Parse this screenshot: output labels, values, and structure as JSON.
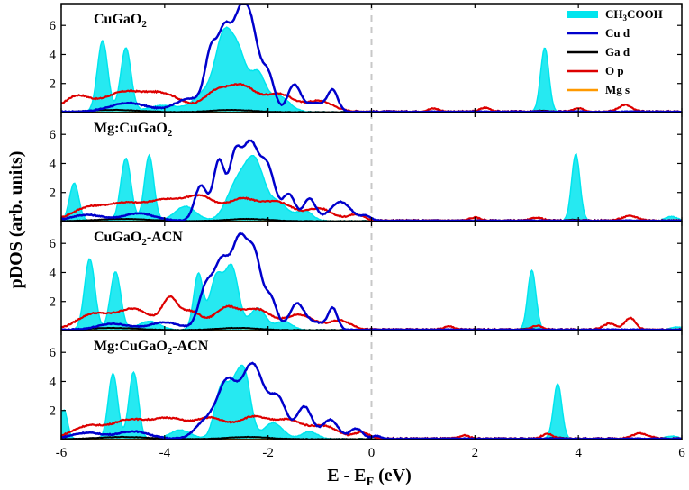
{
  "chart_data": {
    "type": "area",
    "xlabel_main": "E - E",
    "xlabel_sub": "F",
    "xlabel_unit": " (eV)",
    "ylabel": "pDOS (arb. units)",
    "xlim": [
      -6,
      6
    ],
    "ylim": [
      0,
      7.5
    ],
    "x_ticks": [
      -6,
      -4,
      -2,
      0,
      2,
      4,
      6
    ],
    "x_tick_labels": [
      "-6",
      "-4",
      "-2",
      "0",
      "2",
      "4",
      "6"
    ],
    "y_ticks": [
      2,
      4,
      6
    ],
    "y_tick_labels": [
      "2",
      "4",
      "6"
    ],
    "fermi_level": 0,
    "legend": {
      "location": "top-right",
      "entries": [
        {
          "key": "ch3cooh",
          "label_main": "CH",
          "label_sub": "3",
          "label_rest": "COOH",
          "color": "#00E5EE",
          "style": "fill"
        },
        {
          "key": "cud",
          "label_main": "Cu d",
          "label_sub": "",
          "label_rest": "",
          "color": "#0000CC",
          "style": "line"
        },
        {
          "key": "gad",
          "label_main": "Ga d",
          "label_sub": "",
          "label_rest": "",
          "color": "#000000",
          "style": "line"
        },
        {
          "key": "op",
          "label_main": "O p",
          "label_sub": "",
          "label_rest": "",
          "color": "#DD0000",
          "style": "line"
        },
        {
          "key": "mgs",
          "label_main": "Mg s",
          "label_sub": "",
          "label_rest": "",
          "color": "#FF9900",
          "style": "line"
        }
      ]
    },
    "panels": [
      {
        "title_main": "CuGaO",
        "title_sub": "2",
        "title_rest": "",
        "ch3cooh_peaks": [
          [
            -5.2,
            4.9,
            0.1
          ],
          [
            -4.75,
            4.4,
            0.1
          ],
          [
            -4.0,
            0.45,
            0.3
          ],
          [
            -3.25,
            1.2,
            0.2
          ],
          [
            -2.85,
            5.1,
            0.17
          ],
          [
            -2.55,
            3.3,
            0.15
          ],
          [
            -2.2,
            2.5,
            0.14
          ],
          [
            -1.8,
            1.1,
            0.2
          ],
          [
            3.35,
            4.4,
            0.08
          ]
        ],
        "cud_peaks": [
          [
            -4.7,
            0.6,
            0.35
          ],
          [
            -3.5,
            0.9,
            0.3
          ],
          [
            -3.1,
            3.8,
            0.12
          ],
          [
            -2.85,
            4.5,
            0.12
          ],
          [
            -2.55,
            6.2,
            0.16
          ],
          [
            -2.3,
            4.3,
            0.14
          ],
          [
            -2.0,
            2.5,
            0.12
          ],
          [
            -1.5,
            1.8,
            0.12
          ],
          [
            -0.75,
            1.4,
            0.1
          ],
          [
            -1.1,
            0.6,
            0.2
          ]
        ],
        "op_peaks": [
          [
            -5.7,
            1.0,
            0.25
          ],
          [
            -4.8,
            1.3,
            0.4
          ],
          [
            -4.0,
            1.1,
            0.35
          ],
          [
            -3.0,
            1.3,
            0.25
          ],
          [
            -2.5,
            1.6,
            0.25
          ],
          [
            -1.8,
            1.2,
            0.3
          ],
          [
            -1.0,
            0.7,
            0.25
          ],
          [
            1.2,
            0.2,
            0.1
          ],
          [
            2.2,
            0.25,
            0.1
          ],
          [
            4.0,
            0.2,
            0.1
          ],
          [
            4.9,
            0.45,
            0.12
          ]
        ],
        "gad_peaks": [
          [
            -5.0,
            0.15,
            0.5
          ],
          [
            -2.7,
            0.15,
            0.4
          ],
          [
            3.3,
            0.1,
            0.15
          ]
        ]
      },
      {
        "title_main": "Mg:CuGaO",
        "title_sub": "2",
        "title_rest": "",
        "ch3cooh_peaks": [
          [
            -5.75,
            2.6,
            0.09
          ],
          [
            -4.75,
            4.3,
            0.1
          ],
          [
            -4.3,
            4.5,
            0.09
          ],
          [
            -3.6,
            1.0,
            0.2
          ],
          [
            -2.6,
            2.5,
            0.2
          ],
          [
            -2.25,
            3.8,
            0.18
          ],
          [
            -1.8,
            1.2,
            0.18
          ],
          [
            -1.3,
            0.7,
            0.15
          ],
          [
            3.95,
            4.6,
            0.08
          ],
          [
            5.8,
            0.3,
            0.12
          ]
        ],
        "cud_peaks": [
          [
            -5.5,
            0.4,
            0.3
          ],
          [
            -4.5,
            0.5,
            0.3
          ],
          [
            -3.3,
            2.4,
            0.12
          ],
          [
            -2.95,
            4.1,
            0.11
          ],
          [
            -2.65,
            3.7,
            0.11
          ],
          [
            -2.35,
            5.3,
            0.17
          ],
          [
            -2.0,
            3.3,
            0.14
          ],
          [
            -1.6,
            1.8,
            0.12
          ],
          [
            -1.2,
            1.5,
            0.12
          ],
          [
            -0.6,
            1.3,
            0.2
          ],
          [
            -0.1,
            0.3,
            0.1
          ]
        ],
        "op_peaks": [
          [
            -5.5,
            0.8,
            0.3
          ],
          [
            -4.8,
            1.1,
            0.35
          ],
          [
            -4.0,
            1.3,
            0.35
          ],
          [
            -3.3,
            1.5,
            0.3
          ],
          [
            -2.5,
            1.4,
            0.3
          ],
          [
            -1.8,
            1.2,
            0.3
          ],
          [
            -1.0,
            0.8,
            0.25
          ],
          [
            -0.3,
            0.4,
            0.15
          ],
          [
            2.0,
            0.2,
            0.1
          ],
          [
            3.2,
            0.2,
            0.1
          ],
          [
            5.0,
            0.3,
            0.15
          ]
        ],
        "gad_peaks": [
          [
            -4.8,
            0.15,
            0.5
          ],
          [
            -2.4,
            0.15,
            0.4
          ],
          [
            3.9,
            0.1,
            0.15
          ]
        ]
      },
      {
        "title_main": "CuGaO",
        "title_sub": "2",
        "title_rest": "-ACN",
        "ch3cooh_peaks": [
          [
            -5.45,
            4.9,
            0.1
          ],
          [
            -4.95,
            4.0,
            0.1
          ],
          [
            -4.3,
            0.6,
            0.2
          ],
          [
            -3.35,
            3.8,
            0.09
          ],
          [
            -3.0,
            3.6,
            0.13
          ],
          [
            -2.7,
            4.2,
            0.13
          ],
          [
            -2.2,
            1.5,
            0.15
          ],
          [
            -1.7,
            0.6,
            0.15
          ],
          [
            3.1,
            4.1,
            0.08
          ],
          [
            5.9,
            0.2,
            0.12
          ]
        ],
        "cud_peaks": [
          [
            -5.0,
            0.4,
            0.3
          ],
          [
            -4.0,
            0.5,
            0.3
          ],
          [
            -3.2,
            2.9,
            0.14
          ],
          [
            -2.9,
            4.2,
            0.14
          ],
          [
            -2.55,
            6.1,
            0.16
          ],
          [
            -2.25,
            4.4,
            0.13
          ],
          [
            -1.95,
            2.1,
            0.12
          ],
          [
            -1.45,
            1.7,
            0.14
          ],
          [
            -0.75,
            1.4,
            0.09
          ],
          [
            -1.1,
            0.5,
            0.2
          ]
        ],
        "op_peaks": [
          [
            -5.4,
            1.0,
            0.3
          ],
          [
            -4.6,
            1.4,
            0.35
          ],
          [
            -3.9,
            1.9,
            0.15
          ],
          [
            -3.5,
            1.2,
            0.2
          ],
          [
            -2.8,
            1.5,
            0.25
          ],
          [
            -2.2,
            1.3,
            0.25
          ],
          [
            -1.4,
            1.0,
            0.3
          ],
          [
            -0.6,
            0.6,
            0.2
          ],
          [
            1.5,
            0.2,
            0.1
          ],
          [
            3.2,
            0.25,
            0.1
          ],
          [
            4.6,
            0.4,
            0.12
          ],
          [
            5.0,
            0.8,
            0.1
          ]
        ],
        "gad_peaks": [
          [
            -5.0,
            0.15,
            0.5
          ],
          [
            -2.6,
            0.15,
            0.4
          ],
          [
            3.0,
            0.1,
            0.15
          ]
        ]
      },
      {
        "title_main": "Mg:CuGaO",
        "title_sub": "2",
        "title_rest": "-ACN",
        "ch3cooh_peaks": [
          [
            -5.95,
            2.0,
            0.07
          ],
          [
            -5.0,
            4.5,
            0.09
          ],
          [
            -4.6,
            4.6,
            0.09
          ],
          [
            -3.7,
            0.6,
            0.2
          ],
          [
            -2.9,
            3.5,
            0.13
          ],
          [
            -2.65,
            2.8,
            0.12
          ],
          [
            -2.45,
            4.1,
            0.12
          ],
          [
            -1.9,
            1.1,
            0.18
          ],
          [
            -1.2,
            0.5,
            0.15
          ],
          [
            3.6,
            3.8,
            0.08
          ],
          [
            5.8,
            0.2,
            0.12
          ]
        ],
        "cud_peaks": [
          [
            -5.5,
            0.4,
            0.3
          ],
          [
            -4.6,
            0.5,
            0.3
          ],
          [
            -3.2,
            1.2,
            0.2
          ],
          [
            -2.8,
            3.6,
            0.18
          ],
          [
            -2.3,
            5.1,
            0.22
          ],
          [
            -1.8,
            2.6,
            0.16
          ],
          [
            -1.3,
            2.2,
            0.15
          ],
          [
            -0.8,
            1.3,
            0.15
          ],
          [
            -0.3,
            0.7,
            0.12
          ],
          [
            0.1,
            0.2,
            0.08
          ]
        ],
        "op_peaks": [
          [
            -5.5,
            0.8,
            0.3
          ],
          [
            -4.7,
            1.2,
            0.35
          ],
          [
            -3.9,
            1.3,
            0.35
          ],
          [
            -3.1,
            1.3,
            0.3
          ],
          [
            -2.3,
            1.4,
            0.3
          ],
          [
            -1.6,
            1.2,
            0.3
          ],
          [
            -0.9,
            0.8,
            0.25
          ],
          [
            -0.2,
            0.4,
            0.15
          ],
          [
            1.8,
            0.2,
            0.1
          ],
          [
            3.4,
            0.3,
            0.1
          ],
          [
            5.2,
            0.35,
            0.15
          ]
        ],
        "gad_peaks": [
          [
            -4.8,
            0.15,
            0.5
          ],
          [
            -2.4,
            0.15,
            0.4
          ],
          [
            3.6,
            0.1,
            0.15
          ]
        ]
      }
    ]
  }
}
